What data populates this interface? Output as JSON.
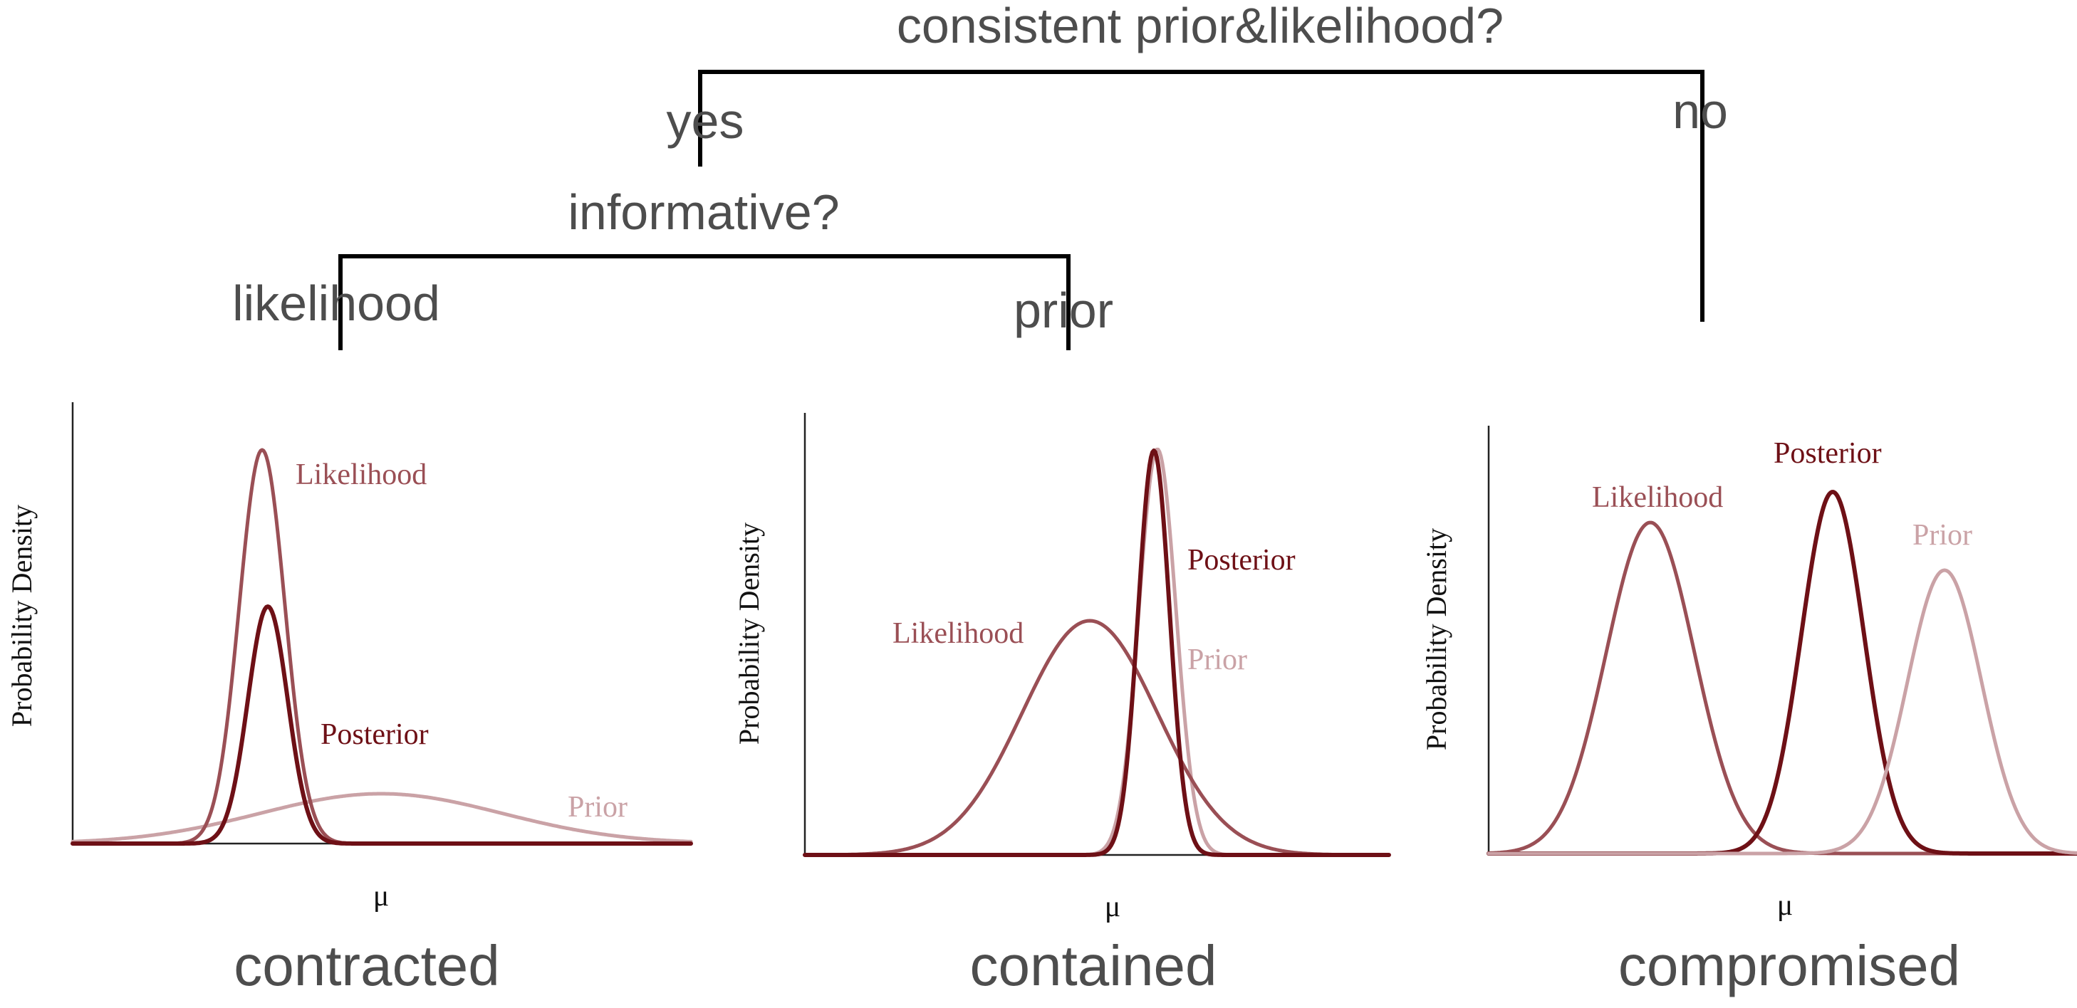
{
  "tree": {
    "root_question": "consistent prior&likelihood?",
    "root_yes": "yes",
    "root_no": "no",
    "sub_question": "informative?",
    "sub_left": "likelihood",
    "sub_right": "prior"
  },
  "colors": {
    "likelihood": "#9a4f55",
    "posterior": "#6e1016",
    "prior": "#caa2a6",
    "axis": "#222222",
    "tree_line": "#000000",
    "tree_text": "#4d4d4d"
  },
  "panels": [
    {
      "caption": "contracted",
      "ylabel": "Probability Density",
      "xlabel": "μ",
      "labels": {
        "likelihood": "Likelihood",
        "posterior": "Posterior",
        "prior": "Prior"
      }
    },
    {
      "caption": "contained",
      "ylabel": "Probability Density",
      "xlabel": "μ",
      "labels": {
        "likelihood": "Likelihood",
        "posterior": "Posterior",
        "prior": "Prior"
      }
    },
    {
      "caption": "compromised",
      "ylabel": "Probability Density",
      "xlabel": "μ",
      "labels": {
        "likelihood": "Likelihood",
        "posterior": "Posterior",
        "prior": "Prior"
      }
    }
  ]
}
